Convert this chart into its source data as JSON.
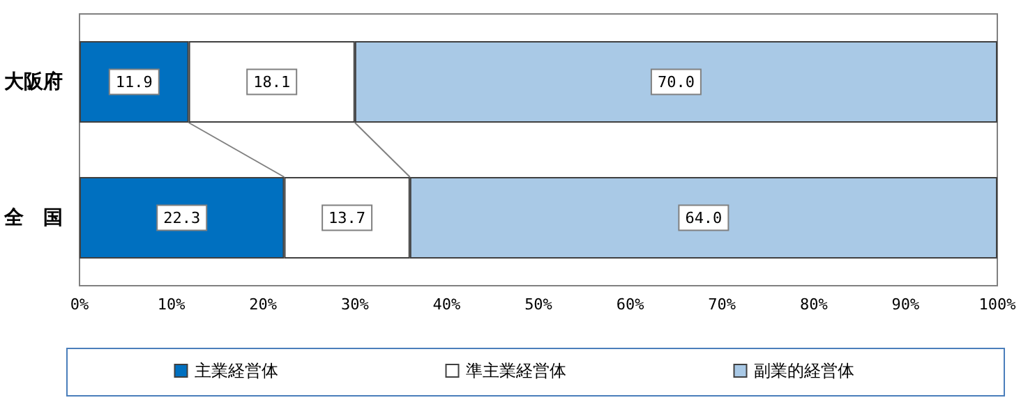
{
  "chart_data": {
    "type": "bar",
    "orientation": "horizontal",
    "stacked": true,
    "categories": [
      "大阪府",
      "全　国"
    ],
    "series": [
      {
        "name": "主業経営体",
        "color": "#0070c0",
        "values": [
          11.9,
          22.3
        ],
        "value_labels": [
          "11.9",
          "22.3"
        ]
      },
      {
        "name": "準主業経営体",
        "color": "#ffffff",
        "values": [
          18.1,
          13.7
        ],
        "value_labels": [
          "18.1",
          "13.7"
        ]
      },
      {
        "name": "副業的経営体",
        "color": "#a9c9e6",
        "values": [
          70.0,
          64.0
        ],
        "value_labels": [
          "70.0",
          "64.0"
        ]
      }
    ],
    "xlim": [
      0,
      100
    ],
    "xticks": [
      {
        "value": 0,
        "label": "0%"
      },
      {
        "value": 10,
        "label": "10%"
      },
      {
        "value": 20,
        "label": "20%"
      },
      {
        "value": 30,
        "label": "30%"
      },
      {
        "value": 40,
        "label": "40%"
      },
      {
        "value": 50,
        "label": "50%"
      },
      {
        "value": 60,
        "label": "60%"
      },
      {
        "value": 70,
        "label": "70%"
      },
      {
        "value": 80,
        "label": "80%"
      },
      {
        "value": 90,
        "label": "90%"
      },
      {
        "value": 100,
        "label": "100%"
      }
    ],
    "legend": "bottom",
    "grid": false
  }
}
